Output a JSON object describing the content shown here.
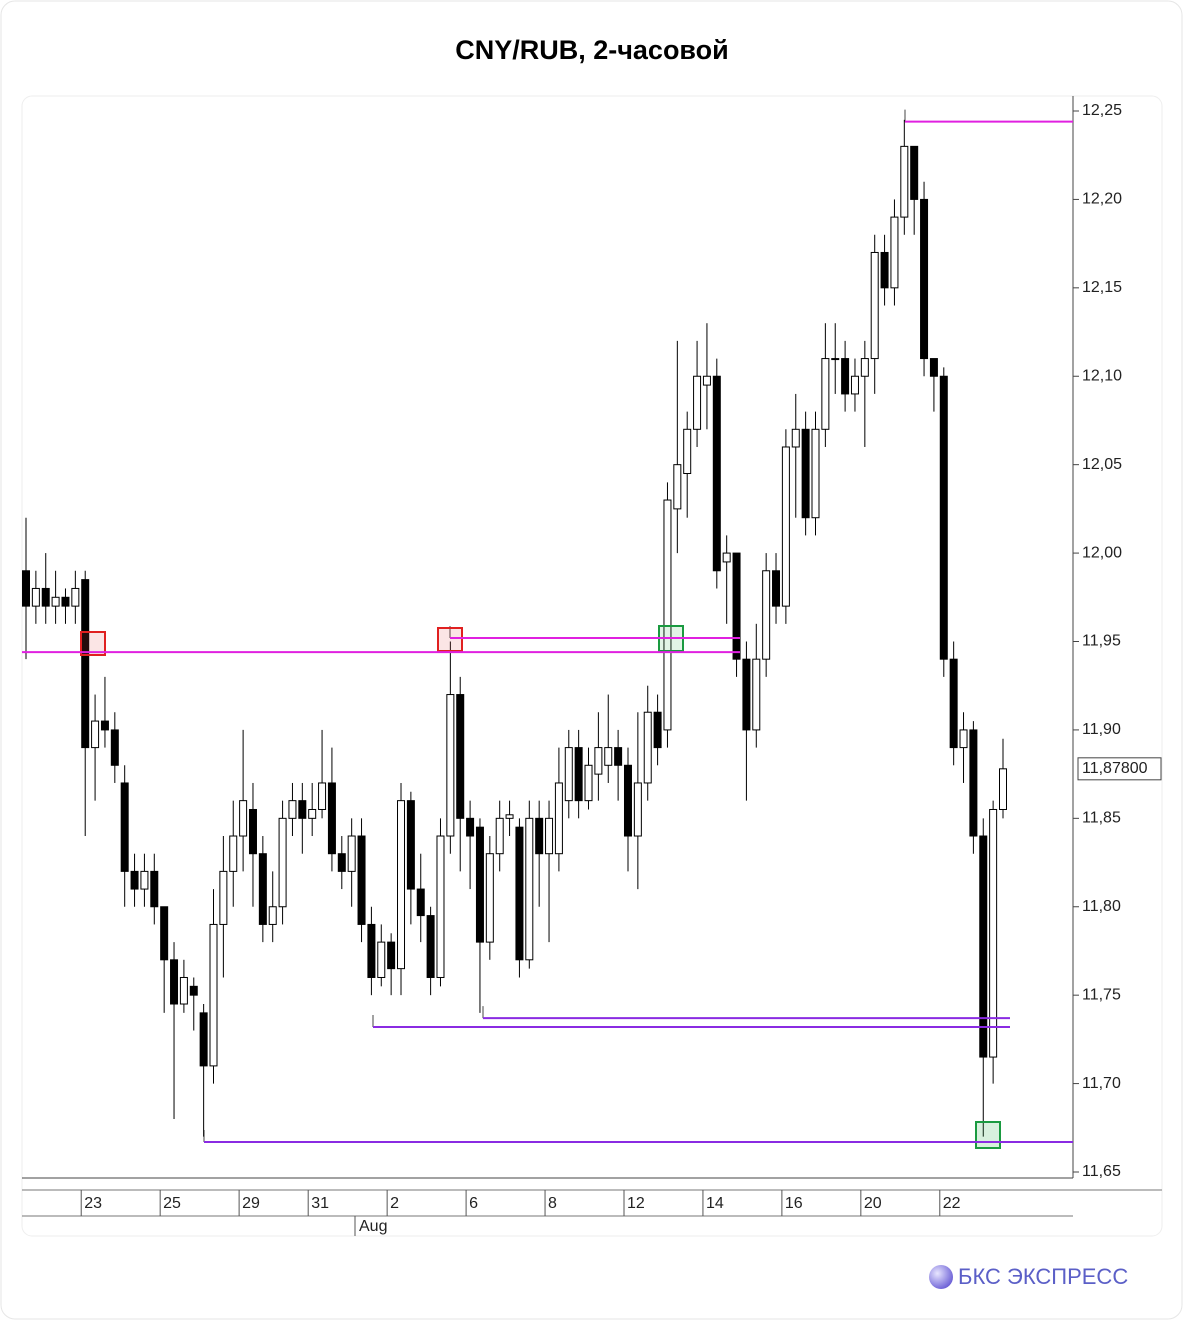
{
  "chart_data": {
    "type": "candlestick",
    "title": "CNY/RUB, 2-часовой",
    "categories": [
      null,
      null,
      null,
      null,
      null,
      null,
      "23",
      null,
      null,
      null,
      null,
      null,
      null,
      null,
      "25",
      null,
      null,
      null,
      null,
      null,
      null,
      null,
      "29",
      null,
      null,
      null,
      null,
      null,
      null,
      "31",
      null,
      null,
      null,
      null,
      null,
      null,
      null,
      "2",
      null,
      null,
      null,
      null,
      null,
      null,
      null,
      "6",
      null,
      null,
      null,
      null,
      null,
      null,
      null,
      "8",
      null,
      null,
      null,
      null,
      null,
      null,
      null,
      "12",
      null,
      null,
      null,
      null,
      null,
      null,
      null,
      "14",
      null,
      null,
      null,
      null,
      null,
      null,
      null,
      "16",
      null,
      null,
      null,
      null,
      null,
      null,
      null,
      "20",
      null,
      null,
      null,
      null,
      null,
      null,
      null,
      "22",
      null,
      null,
      null,
      null,
      null,
      null
    ],
    "month_label": "Aug",
    "open": [
      11.99,
      11.97,
      11.98,
      11.97,
      11.975,
      11.97,
      11.985,
      11.89,
      11.905,
      11.9,
      11.87,
      11.82,
      11.81,
      11.82,
      11.8,
      11.77,
      11.745,
      11.755,
      11.74,
      11.71,
      11.79,
      11.82,
      11.84,
      11.855,
      11.83,
      11.79,
      11.8,
      11.85,
      11.86,
      11.85,
      11.855,
      11.87,
      11.83,
      11.82,
      11.84,
      11.79,
      11.76,
      11.78,
      11.765,
      11.86,
      11.81,
      11.795,
      11.76,
      11.84,
      11.92,
      11.85,
      11.845,
      11.78,
      11.83,
      11.85,
      11.845,
      11.77,
      11.85,
      11.83,
      11.83,
      11.86,
      11.89,
      11.86,
      11.875,
      11.88,
      11.89,
      11.88,
      11.84,
      11.87,
      11.91,
      11.9,
      12.025,
      12.045,
      12.07,
      12.095,
      12.1,
      11.995,
      12.0,
      11.94,
      11.9,
      11.94,
      11.99,
      11.97,
      12.06,
      12.07,
      12.02,
      12.07,
      12.11,
      12.11,
      12.09,
      12.1,
      12.11,
      12.17,
      12.15,
      12.19,
      12.23,
      12.2,
      12.11,
      12.1,
      11.94,
      11.89,
      11.9,
      11.84,
      11.715,
      11.855
    ],
    "high": [
      12.02,
      11.99,
      12.0,
      11.99,
      11.98,
      11.99,
      11.99,
      11.92,
      11.93,
      11.91,
      11.88,
      11.83,
      11.83,
      11.83,
      11.8,
      11.78,
      11.77,
      11.76,
      11.745,
      11.81,
      11.84,
      11.86,
      11.9,
      11.87,
      11.84,
      11.82,
      11.86,
      11.87,
      11.87,
      11.87,
      11.9,
      11.89,
      11.84,
      11.85,
      11.85,
      11.8,
      11.79,
      11.785,
      11.87,
      11.865,
      11.83,
      11.8,
      11.85,
      11.95,
      11.93,
      11.86,
      11.85,
      11.84,
      11.86,
      11.86,
      11.85,
      11.86,
      11.86,
      11.86,
      11.89,
      11.9,
      11.9,
      11.89,
      11.91,
      11.92,
      11.9,
      11.89,
      11.91,
      11.925,
      11.92,
      12.04,
      12.12,
      12.08,
      12.12,
      12.13,
      12.11,
      12.01,
      12.0,
      11.95,
      11.96,
      12.0,
      12.0,
      12.07,
      12.09,
      12.08,
      12.08,
      12.13,
      12.13,
      12.12,
      12.11,
      12.12,
      12.18,
      12.18,
      12.2,
      12.245,
      12.23,
      12.21,
      12.11,
      12.105,
      11.95,
      11.91,
      11.905,
      11.85,
      11.86,
      11.895
    ],
    "low": [
      11.94,
      11.96,
      11.96,
      11.96,
      11.96,
      11.96,
      11.84,
      11.86,
      11.89,
      11.87,
      11.8,
      11.8,
      11.8,
      11.79,
      11.74,
      11.68,
      11.74,
      11.73,
      11.67,
      11.7,
      11.76,
      11.8,
      11.82,
      11.8,
      11.78,
      11.78,
      11.79,
      11.84,
      11.83,
      11.84,
      11.85,
      11.82,
      11.81,
      11.8,
      11.78,
      11.75,
      11.755,
      11.75,
      11.75,
      11.79,
      11.78,
      11.75,
      11.755,
      11.83,
      11.82,
      11.81,
      11.74,
      11.77,
      11.82,
      11.84,
      11.76,
      11.765,
      11.8,
      11.78,
      11.82,
      11.85,
      11.85,
      11.855,
      11.86,
      11.87,
      11.86,
      11.82,
      11.81,
      11.86,
      11.88,
      11.89,
      12.0,
      12.02,
      12.06,
      12.07,
      11.98,
      11.96,
      11.93,
      11.86,
      11.89,
      11.93,
      11.96,
      11.96,
      12.02,
      12.01,
      12.01,
      12.06,
      12.09,
      12.08,
      12.08,
      12.06,
      12.09,
      12.14,
      12.14,
      12.18,
      12.18,
      12.1,
      12.08,
      11.93,
      11.88,
      11.87,
      11.83,
      11.67,
      11.7,
      11.85
    ],
    "close": [
      11.97,
      11.98,
      11.97,
      11.975,
      11.97,
      11.98,
      11.89,
      11.905,
      11.9,
      11.88,
      11.82,
      11.81,
      11.82,
      11.8,
      11.77,
      11.745,
      11.76,
      11.75,
      11.71,
      11.79,
      11.82,
      11.84,
      11.86,
      11.83,
      11.79,
      11.8,
      11.85,
      11.86,
      11.85,
      11.855,
      11.87,
      11.83,
      11.82,
      11.84,
      11.79,
      11.76,
      11.78,
      11.765,
      11.86,
      11.81,
      11.795,
      11.76,
      11.84,
      11.92,
      11.85,
      11.84,
      11.78,
      11.83,
      11.85,
      11.852,
      11.77,
      11.85,
      11.83,
      11.85,
      11.87,
      11.89,
      11.86,
      11.88,
      11.89,
      11.89,
      11.88,
      11.84,
      11.87,
      11.91,
      11.89,
      12.03,
      12.05,
      12.07,
      12.1,
      12.1,
      11.99,
      12.0,
      11.94,
      11.9,
      11.94,
      11.99,
      11.97,
      12.06,
      12.07,
      12.02,
      12.07,
      12.11,
      12.11,
      12.09,
      12.1,
      12.11,
      12.17,
      12.15,
      12.19,
      12.23,
      12.2,
      12.11,
      12.1,
      11.94,
      11.89,
      11.9,
      11.84,
      11.715,
      11.855,
      11.878
    ],
    "up_color": "#ffffff",
    "down_color": "#000000",
    "ylim": [
      11.65,
      12.25
    ],
    "yticks": [
      {
        "value": 11.65,
        "label": "11,65"
      },
      {
        "value": 11.7,
        "label": "11,70"
      },
      {
        "value": 11.75,
        "label": "11,75"
      },
      {
        "value": 11.8,
        "label": "11,80"
      },
      {
        "value": 11.85,
        "label": "11,85"
      },
      {
        "value": 11.9,
        "label": "11,90"
      },
      {
        "value": 11.95,
        "label": "11,95"
      },
      {
        "value": 12.0,
        "label": "12,00"
      },
      {
        "value": 12.05,
        "label": "12,05"
      },
      {
        "value": 12.1,
        "label": "12,10"
      },
      {
        "value": 12.15,
        "label": "12,15"
      },
      {
        "value": 12.2,
        "label": "12,20"
      },
      {
        "value": 12.25,
        "label": "12,25"
      }
    ],
    "last_price": {
      "value": 11.878,
      "label": "11,87800"
    },
    "levels": [
      {
        "value": 11.944,
        "color": "#e020e0"
      },
      {
        "value": 11.952,
        "color": "#e020e0"
      },
      {
        "value": 11.732,
        "color": "#8a2be2"
      },
      {
        "value": 11.737,
        "color": "#8a2be2"
      },
      {
        "value": 11.667,
        "color": "#8a2be2"
      },
      {
        "value": 12.244,
        "color": "#e020e0"
      }
    ],
    "grid": false
  },
  "brand": "БКС ЭКСПРЕСС"
}
